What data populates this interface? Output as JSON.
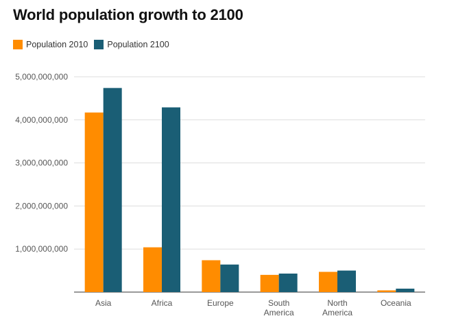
{
  "chart_data": {
    "type": "bar",
    "title": "World population growth to 2100",
    "categories": [
      [
        "Asia"
      ],
      [
        "Africa"
      ],
      [
        "Europe"
      ],
      [
        "South",
        "America"
      ],
      [
        "North",
        "America"
      ],
      [
        "Oceania"
      ]
    ],
    "series": [
      {
        "name": "Population 2010",
        "color": "#FF8C00",
        "values": [
          4170000000,
          1040000000,
          740000000,
          400000000,
          470000000,
          40000000
        ]
      },
      {
        "name": "Population 2100",
        "color": "#1A5E75",
        "values": [
          4740000000,
          4290000000,
          640000000,
          430000000,
          500000000,
          80000000
        ]
      }
    ],
    "y_ticks": [
      "5,000,000,000",
      "4,000,000,000",
      "3,000,000,000",
      "2,000,000,000",
      "1,000,000,000"
    ],
    "ylim": [
      0,
      5000000000
    ],
    "grid": true,
    "legend_position": "top-left"
  }
}
